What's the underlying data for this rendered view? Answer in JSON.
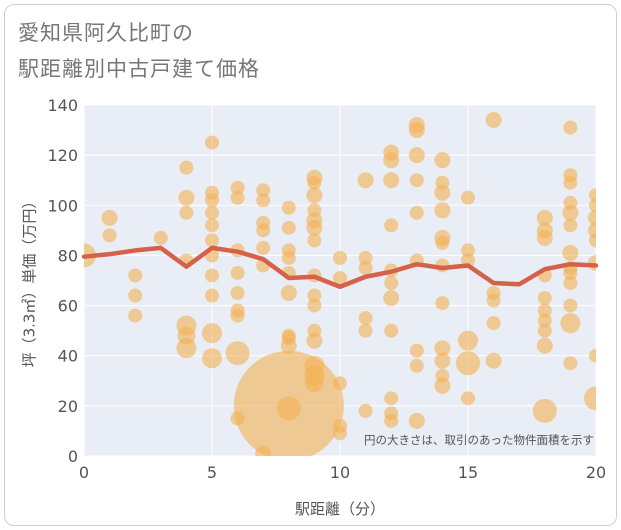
{
  "title_line1": "愛知県阿久比町の",
  "title_line2": "駅距離別中古戸建て価格",
  "chart_data": {
    "type": "scatter",
    "title": "愛知県阿久比町の駅距離別中古戸建て価格",
    "xlabel": "駅距離（分）",
    "ylabel": "坪（3.3㎡）単価（万円）",
    "xlim": [
      0,
      20
    ],
    "ylim": [
      0,
      140
    ],
    "xticks": [
      0,
      5,
      10,
      15,
      20
    ],
    "yticks": [
      0,
      20,
      40,
      60,
      80,
      100,
      120,
      140
    ],
    "annotation": "円の大きさは、取引のあった物件面積を示す",
    "colors": {
      "bubble": "#f3b052",
      "line": "#d6614a",
      "plot_bg": "#e9edf5",
      "grid": "#ffffff"
    },
    "points": [
      {
        "x": 0,
        "y": 80,
        "s": 12
      },
      {
        "x": 1,
        "y": 95,
        "s": 8
      },
      {
        "x": 1,
        "y": 88,
        "s": 7
      },
      {
        "x": 2,
        "y": 72,
        "s": 7
      },
      {
        "x": 2,
        "y": 64,
        "s": 7
      },
      {
        "x": 2,
        "y": 56,
        "s": 7
      },
      {
        "x": 3,
        "y": 87,
        "s": 7
      },
      {
        "x": 4,
        "y": 115,
        "s": 7
      },
      {
        "x": 4,
        "y": 103,
        "s": 8
      },
      {
        "x": 4,
        "y": 97,
        "s": 7
      },
      {
        "x": 4,
        "y": 78,
        "s": 7
      },
      {
        "x": 4,
        "y": 52,
        "s": 10
      },
      {
        "x": 4,
        "y": 48,
        "s": 9
      },
      {
        "x": 4,
        "y": 43,
        "s": 10
      },
      {
        "x": 5,
        "y": 125,
        "s": 7
      },
      {
        "x": 5,
        "y": 105,
        "s": 7
      },
      {
        "x": 5,
        "y": 102,
        "s": 7
      },
      {
        "x": 5,
        "y": 97,
        "s": 7
      },
      {
        "x": 5,
        "y": 92,
        "s": 7
      },
      {
        "x": 5,
        "y": 86,
        "s": 7
      },
      {
        "x": 5,
        "y": 80,
        "s": 7
      },
      {
        "x": 5,
        "y": 72,
        "s": 7
      },
      {
        "x": 5,
        "y": 64,
        "s": 7
      },
      {
        "x": 5,
        "y": 49,
        "s": 10
      },
      {
        "x": 5,
        "y": 39,
        "s": 10
      },
      {
        "x": 6,
        "y": 107,
        "s": 7
      },
      {
        "x": 6,
        "y": 103,
        "s": 7
      },
      {
        "x": 6,
        "y": 82,
        "s": 7
      },
      {
        "x": 6,
        "y": 73,
        "s": 7
      },
      {
        "x": 6,
        "y": 65,
        "s": 7
      },
      {
        "x": 6,
        "y": 58,
        "s": 7
      },
      {
        "x": 6,
        "y": 56,
        "s": 7
      },
      {
        "x": 6,
        "y": 41,
        "s": 12
      },
      {
        "x": 6,
        "y": 15,
        "s": 7
      },
      {
        "x": 7,
        "y": 106,
        "s": 7
      },
      {
        "x": 7,
        "y": 102,
        "s": 7
      },
      {
        "x": 7,
        "y": 93,
        "s": 7
      },
      {
        "x": 7,
        "y": 90,
        "s": 7
      },
      {
        "x": 7,
        "y": 83,
        "s": 7
      },
      {
        "x": 7,
        "y": 76,
        "s": 7
      },
      {
        "x": 7,
        "y": 1,
        "s": 8
      },
      {
        "x": 8,
        "y": 99,
        "s": 7
      },
      {
        "x": 8,
        "y": 91,
        "s": 7
      },
      {
        "x": 8,
        "y": 82,
        "s": 7
      },
      {
        "x": 8,
        "y": 79,
        "s": 7
      },
      {
        "x": 8,
        "y": 73,
        "s": 7
      },
      {
        "x": 8,
        "y": 65,
        "s": 8
      },
      {
        "x": 8,
        "y": 48,
        "s": 7
      },
      {
        "x": 8,
        "y": 47,
        "s": 7
      },
      {
        "x": 8,
        "y": 44,
        "s": 8
      },
      {
        "x": 8,
        "y": 20,
        "s": 55
      },
      {
        "x": 8,
        "y": 19,
        "s": 12
      },
      {
        "x": 9,
        "y": 111,
        "s": 8
      },
      {
        "x": 9,
        "y": 109,
        "s": 7
      },
      {
        "x": 9,
        "y": 104,
        "s": 8
      },
      {
        "x": 9,
        "y": 98,
        "s": 7
      },
      {
        "x": 9,
        "y": 94,
        "s": 8
      },
      {
        "x": 9,
        "y": 91,
        "s": 8
      },
      {
        "x": 9,
        "y": 86,
        "s": 7
      },
      {
        "x": 9,
        "y": 72,
        "s": 7
      },
      {
        "x": 9,
        "y": 64,
        "s": 7
      },
      {
        "x": 9,
        "y": 60,
        "s": 7
      },
      {
        "x": 9,
        "y": 50,
        "s": 7
      },
      {
        "x": 9,
        "y": 46,
        "s": 8
      },
      {
        "x": 9,
        "y": 36,
        "s": 10
      },
      {
        "x": 9,
        "y": 32,
        "s": 10
      },
      {
        "x": 9,
        "y": 29,
        "s": 9
      },
      {
        "x": 10,
        "y": 79,
        "s": 7
      },
      {
        "x": 10,
        "y": 71,
        "s": 7
      },
      {
        "x": 10,
        "y": 29,
        "s": 7
      },
      {
        "x": 10,
        "y": 12,
        "s": 7
      },
      {
        "x": 10,
        "y": 9,
        "s": 7
      },
      {
        "x": 11,
        "y": 110,
        "s": 8
      },
      {
        "x": 11,
        "y": 79,
        "s": 7
      },
      {
        "x": 11,
        "y": 75,
        "s": 7
      },
      {
        "x": 11,
        "y": 55,
        "s": 7
      },
      {
        "x": 11,
        "y": 50,
        "s": 7
      },
      {
        "x": 11,
        "y": 18,
        "s": 7
      },
      {
        "x": 12,
        "y": 121,
        "s": 8
      },
      {
        "x": 12,
        "y": 118,
        "s": 8
      },
      {
        "x": 12,
        "y": 110,
        "s": 8
      },
      {
        "x": 12,
        "y": 92,
        "s": 7
      },
      {
        "x": 12,
        "y": 74,
        "s": 7
      },
      {
        "x": 12,
        "y": 69,
        "s": 7
      },
      {
        "x": 12,
        "y": 63,
        "s": 8
      },
      {
        "x": 12,
        "y": 50,
        "s": 7
      },
      {
        "x": 12,
        "y": 23,
        "s": 7
      },
      {
        "x": 12,
        "y": 17,
        "s": 7
      },
      {
        "x": 12,
        "y": 14,
        "s": 7
      },
      {
        "x": 13,
        "y": 132,
        "s": 8
      },
      {
        "x": 13,
        "y": 130,
        "s": 8
      },
      {
        "x": 13,
        "y": 120,
        "s": 8
      },
      {
        "x": 13,
        "y": 110,
        "s": 7
      },
      {
        "x": 13,
        "y": 97,
        "s": 7
      },
      {
        "x": 13,
        "y": 78,
        "s": 7
      },
      {
        "x": 13,
        "y": 42,
        "s": 7
      },
      {
        "x": 13,
        "y": 36,
        "s": 7
      },
      {
        "x": 13,
        "y": 14,
        "s": 8
      },
      {
        "x": 14,
        "y": 118,
        "s": 8
      },
      {
        "x": 14,
        "y": 109,
        "s": 7
      },
      {
        "x": 14,
        "y": 105,
        "s": 8
      },
      {
        "x": 14,
        "y": 98,
        "s": 8
      },
      {
        "x": 14,
        "y": 87,
        "s": 8
      },
      {
        "x": 14,
        "y": 85,
        "s": 7
      },
      {
        "x": 14,
        "y": 76,
        "s": 7
      },
      {
        "x": 14,
        "y": 61,
        "s": 7
      },
      {
        "x": 14,
        "y": 43,
        "s": 8
      },
      {
        "x": 14,
        "y": 38,
        "s": 8
      },
      {
        "x": 14,
        "y": 32,
        "s": 7
      },
      {
        "x": 14,
        "y": 28,
        "s": 8
      },
      {
        "x": 15,
        "y": 103,
        "s": 7
      },
      {
        "x": 15,
        "y": 82,
        "s": 7
      },
      {
        "x": 15,
        "y": 78,
        "s": 7
      },
      {
        "x": 15,
        "y": 46,
        "s": 10
      },
      {
        "x": 15,
        "y": 37,
        "s": 12
      },
      {
        "x": 15,
        "y": 23,
        "s": 7
      },
      {
        "x": 16,
        "y": 134,
        "s": 8
      },
      {
        "x": 16,
        "y": 65,
        "s": 7
      },
      {
        "x": 16,
        "y": 62,
        "s": 7
      },
      {
        "x": 16,
        "y": 53,
        "s": 7
      },
      {
        "x": 16,
        "y": 38,
        "s": 8
      },
      {
        "x": 18,
        "y": 95,
        "s": 8
      },
      {
        "x": 18,
        "y": 90,
        "s": 8
      },
      {
        "x": 18,
        "y": 87,
        "s": 8
      },
      {
        "x": 18,
        "y": 72,
        "s": 7
      },
      {
        "x": 18,
        "y": 63,
        "s": 7
      },
      {
        "x": 18,
        "y": 58,
        "s": 7
      },
      {
        "x": 18,
        "y": 54,
        "s": 7
      },
      {
        "x": 18,
        "y": 50,
        "s": 7
      },
      {
        "x": 18,
        "y": 44,
        "s": 8
      },
      {
        "x": 18,
        "y": 18,
        "s": 12
      },
      {
        "x": 19,
        "y": 131,
        "s": 7
      },
      {
        "x": 19,
        "y": 112,
        "s": 7
      },
      {
        "x": 19,
        "y": 109,
        "s": 7
      },
      {
        "x": 19,
        "y": 101,
        "s": 7
      },
      {
        "x": 19,
        "y": 97,
        "s": 8
      },
      {
        "x": 19,
        "y": 92,
        "s": 7
      },
      {
        "x": 19,
        "y": 81,
        "s": 8
      },
      {
        "x": 19,
        "y": 75,
        "s": 7
      },
      {
        "x": 19,
        "y": 73,
        "s": 7
      },
      {
        "x": 19,
        "y": 69,
        "s": 7
      },
      {
        "x": 19,
        "y": 60,
        "s": 7
      },
      {
        "x": 19,
        "y": 53,
        "s": 10
      },
      {
        "x": 19,
        "y": 37,
        "s": 7
      },
      {
        "x": 20,
        "y": 104,
        "s": 7
      },
      {
        "x": 20,
        "y": 100,
        "s": 7
      },
      {
        "x": 20,
        "y": 95,
        "s": 8
      },
      {
        "x": 20,
        "y": 90,
        "s": 8
      },
      {
        "x": 20,
        "y": 86,
        "s": 7
      },
      {
        "x": 20,
        "y": 77,
        "s": 8
      },
      {
        "x": 20,
        "y": 40,
        "s": 7
      },
      {
        "x": 20,
        "y": 23,
        "s": 12
      }
    ],
    "trend": {
      "x": [
        0,
        1,
        2,
        3,
        4,
        5,
        6,
        7,
        8,
        9,
        10,
        11,
        12,
        13,
        14,
        15,
        16,
        17,
        18,
        19,
        20
      ],
      "y": [
        79.5,
        80.5,
        82,
        83,
        75.5,
        83,
        81.5,
        78.5,
        71,
        71.5,
        67.5,
        71.5,
        73.5,
        76.5,
        75,
        76,
        69,
        68.5,
        74.5,
        76.5,
        76
      ]
    }
  }
}
